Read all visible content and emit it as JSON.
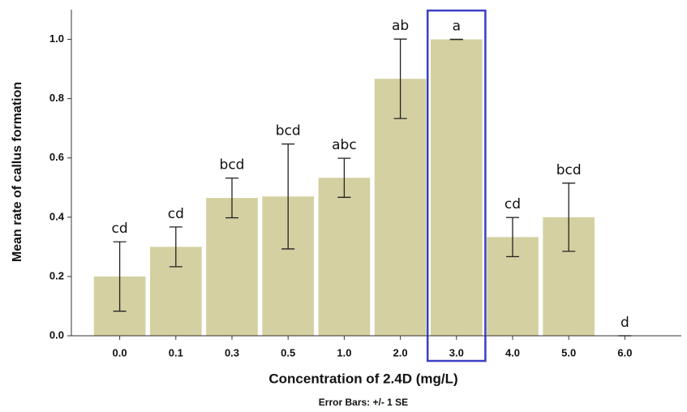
{
  "chart_data": {
    "type": "bar",
    "x_label": "Concentration of  2.4D (mg/L)",
    "y_label": "Mean rate of callus formation",
    "footnote": "Error Bars: +/- 1 SE",
    "categories": [
      "0.0",
      "0.1",
      "0.3",
      "0.5",
      "1.0",
      "2.0",
      "3.0",
      "4.0",
      "5.0",
      "6.0"
    ],
    "values": [
      0.2,
      0.3,
      0.465,
      0.47,
      0.533,
      0.867,
      1.0,
      0.333,
      0.4,
      0
    ],
    "errors": [
      0.117,
      0.067,
      0.067,
      0.177,
      0.066,
      0.134,
      0,
      0.066,
      0.115,
      0
    ],
    "annotations": [
      "cd",
      "cd",
      "bcd",
      "bcd",
      "abc",
      "ab",
      "a",
      "cd",
      "bcd",
      "d"
    ],
    "color": "#d4d0a1",
    "highlight_category": "3.0",
    "highlight_color": "#3b3fc4",
    "ylim": [
      0,
      1.1
    ],
    "yticks": [
      {
        "value": 0,
        "label": "0.0"
      },
      {
        "value": 0.2,
        "label": "0.2"
      },
      {
        "value": 0.4,
        "label": "0.4"
      },
      {
        "value": 0.6,
        "label": "0.6"
      },
      {
        "value": 0.8,
        "label": "0.8"
      },
      {
        "value": 1.0,
        "label": "1.0"
      }
    ],
    "grid": false
  }
}
